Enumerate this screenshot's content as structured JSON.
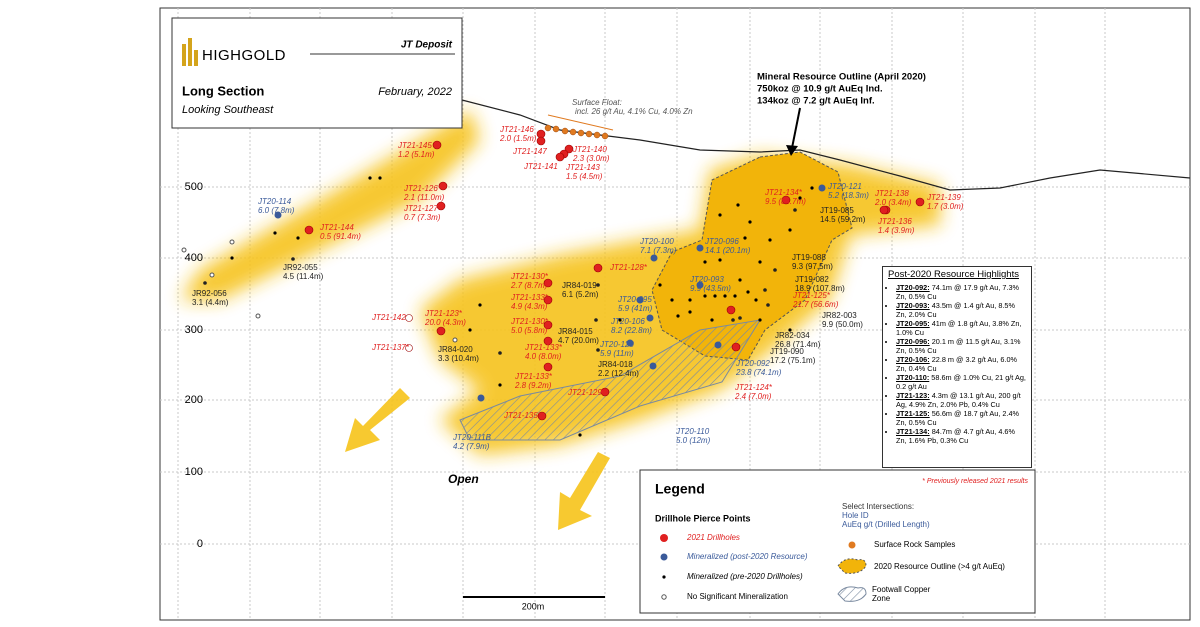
{
  "header": {
    "logo": "HIGHGOLD",
    "deposit": "JT Deposit",
    "title": "Long Section",
    "subtitle": "Looking Southeast",
    "date": "February, 2022"
  },
  "elevation_labels": [
    "500",
    "400",
    "300",
    "200",
    "100",
    "0"
  ],
  "surface_float": {
    "title": "Surface Float:",
    "text": "incl. 26 g/t Au, 4.1% Cu, 4.0% Zn"
  },
  "resource_note": [
    "Mineral Resource Outline (April 2020)",
    "750koz @ 10.9 g/t AuEq Ind.",
    "134koz @ 7.2 g/t AuEq Inf."
  ],
  "open_label": "Open",
  "scale_label": "200m",
  "drillholes": {
    "red": [
      {
        "label": "JT21-145",
        "result": "1.2 (5.1m)"
      },
      {
        "label": "JT21-126*",
        "result": "2.1 (11.0m)"
      },
      {
        "label": "JT21-127*",
        "result": "0.7 (7.3m)"
      },
      {
        "label": "JT21-144",
        "result": "0.5 (91.4m)"
      },
      {
        "label": "JT21-146",
        "result": "2.0 (1.5m)"
      },
      {
        "label": "JT21-147"
      },
      {
        "label": "JT21-140",
        "result": "2.3 (3.0m)"
      },
      {
        "label": "JT21-141"
      },
      {
        "label": "JT21-143",
        "result": "1.5 (4.5m)"
      },
      {
        "label": "JT21-142"
      },
      {
        "label": "JT21-137*"
      },
      {
        "label": "JT21-123*",
        "result": "20.0 (4.3m)"
      },
      {
        "label": "JT21-130*",
        "result": "2.7 (8.7m)"
      },
      {
        "label": "JT21-133*",
        "result": "4.9 (4.3m)"
      },
      {
        "label": "JT21-130*",
        "result": "5.0 (5.8m)"
      },
      {
        "label": "JT21-133*",
        "result": "4.0 (8.0m)"
      },
      {
        "label": "JT21-133*",
        "result": "2.8 (9.2m)"
      },
      {
        "label": "JT21-128*"
      },
      {
        "label": "JT21-129*"
      },
      {
        "label": "JT21-135*"
      },
      {
        "label": "JT21-134*",
        "result": "9.5 (84.7m)"
      },
      {
        "label": "JT21-125*",
        "result": "21.7 (56.6m)"
      },
      {
        "label": "JT21-124*",
        "result": "2.4 (7.0m)"
      },
      {
        "label": "JT21-138",
        "result": "2.0 (3.4m)"
      },
      {
        "label": "JT21-136",
        "result": "1.4 (3.9m)"
      },
      {
        "label": "JT21-139",
        "result": "1.7 (3.0m)"
      }
    ],
    "blue": [
      {
        "label": "JT20-114",
        "result": "6.0 (7.8m)"
      },
      {
        "label": "JT20-121",
        "result": "5.2 (18.3m)"
      },
      {
        "label": "JT20-100",
        "result": "7.1 (7.3m)"
      },
      {
        "label": "JT20-096",
        "result": "14.1 (20.1m)"
      },
      {
        "label": "JT20-093",
        "result": "9.9 (43.5m)"
      },
      {
        "label": "JT20-095",
        "result": "5.9 (41m)"
      },
      {
        "label": "JT20-106",
        "result": "8.2 (22.8m)"
      },
      {
        "label": "JT20-120",
        "result": "5.9 (11m)"
      },
      {
        "label": "JT20-092",
        "result": "23.8 (74.1m)"
      },
      {
        "label": "JT20-110",
        "result": "5.0 (12m)"
      },
      {
        "label": "JT20-111B",
        "result": "4.2 (7.9m)"
      }
    ],
    "black": [
      {
        "label": "JR92-056",
        "result": "3.1 (4.4m)"
      },
      {
        "label": "JR92-055",
        "result": "4.5 (11.4m)"
      },
      {
        "label": "JR84-019",
        "result": "6.1 (5.2m)"
      },
      {
        "label": "JR84-015",
        "result": "4.7 (20.0m)"
      },
      {
        "label": "JR84-020",
        "result": "3.3 (10.4m)"
      },
      {
        "label": "JR84-018",
        "result": "2.2 (12.4m)"
      },
      {
        "label": "JT19-085",
        "result": "14.5 (59.2m)"
      },
      {
        "label": "JT19-088",
        "result": "9.3 (97.5m)"
      },
      {
        "label": "JT19-082",
        "result": "18.9 (107.8m)"
      },
      {
        "label": "JR82-003",
        "result": "9.9 (50.0m)"
      },
      {
        "label": "JR82-034",
        "result": "26.8 (71.4m)"
      },
      {
        "label": "JT19-090",
        "result": "17.2 (75.1m)"
      }
    ]
  },
  "highlights": {
    "title": "Post-2020 Resource Highlights",
    "items": [
      {
        "id": "JT20-092:",
        "text": "74.1m @ 17.9 g/t Au, 7.3% Zn, 0.5% Cu"
      },
      {
        "id": "JT20-093:",
        "text": "43.5m @ 1.4 g/t Au, 8.5% Zn, 2.0% Cu"
      },
      {
        "id": "JT20-095:",
        "text": "41m @ 1.8 g/t Au, 3.8% Zn, 1.0% Cu"
      },
      {
        "id": "JT20-096:",
        "text": "20.1 m @ 11.5 g/t Au, 3.1% Zn, 0.5% Cu"
      },
      {
        "id": "JT20-106:",
        "text": "22.8 m @ 3.2 g/t Au, 6.0% Zn, 0.4% Cu"
      },
      {
        "id": "JT20-110:",
        "text": "58.6m @ 1.0% Cu, 21 g/t Ag, 0.2 g/t Au"
      },
      {
        "id": "JT21-123:",
        "text": "4.3m @ 13.1 g/t Au, 200 g/t Ag, 4.9% Zn, 2.0% Pb, 0.4% Cu"
      },
      {
        "id": "JT21-125:",
        "text": "56.6m @ 18.7 g/t Au, 2.4% Zn, 0.5% Cu"
      },
      {
        "id": "JT21-134:",
        "text": "84.7m @ 4.7 g/t Au, 4.6% Zn, 1.6% Pb, 0.3% Cu"
      }
    ]
  },
  "legend": {
    "title": "Legend",
    "pierce_title": "Drillhole Pierce Points",
    "items": [
      "2021 Drillholes",
      "Mineralized (post-2020 Resource)",
      "Mineralized (pre-2020 Drillholes)",
      "No Significant Mineralization"
    ],
    "note": "* Previously released 2021 results",
    "select_title": "Select Intersections:",
    "hole_id": "Hole ID",
    "aueq": "AuEq g/t (Drilled Length)",
    "symbols": [
      "Surface Rock Samples",
      "2020 Resource Outline (>4 g/t AuEq)",
      "Footwall Copper Zone"
    ]
  }
}
